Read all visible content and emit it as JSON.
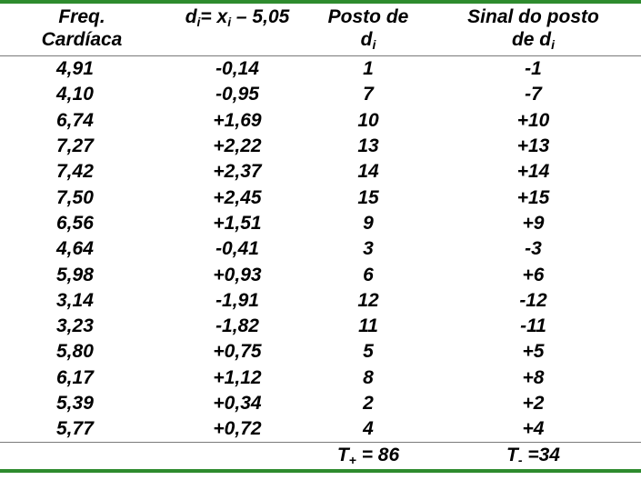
{
  "table": {
    "headers": {
      "col1_line1": "Freq.",
      "col1_line2": "Cardíaca",
      "col2_d": "d",
      "col2_i": "i",
      "col2_mid": "= x",
      "col2_i2": "i",
      "col2_tail": " – 5,05",
      "col3_line1": "Posto de",
      "col3_d": "d",
      "col3_i": "i",
      "col4_line1": "Sinal do posto",
      "col4_pre": "de d",
      "col4_i": "i"
    },
    "rows": [
      {
        "freq": "4,91",
        "di": "-0,14",
        "posto": "1",
        "sinal": "-1"
      },
      {
        "freq": "4,10",
        "di": "-0,95",
        "posto": "7",
        "sinal": "-7"
      },
      {
        "freq": "6,74",
        "di": "+1,69",
        "posto": "10",
        "sinal": "+10"
      },
      {
        "freq": "7,27",
        "di": "+2,22",
        "posto": "13",
        "sinal": "+13"
      },
      {
        "freq": "7,42",
        "di": "+2,37",
        "posto": "14",
        "sinal": "+14"
      },
      {
        "freq": "7,50",
        "di": "+2,45",
        "posto": "15",
        "sinal": "+15"
      },
      {
        "freq": "6,56",
        "di": "+1,51",
        "posto": "9",
        "sinal": "+9"
      },
      {
        "freq": "4,64",
        "di": "-0,41",
        "posto": "3",
        "sinal": "-3"
      },
      {
        "freq": "5,98",
        "di": "+0,93",
        "posto": "6",
        "sinal": "+6"
      },
      {
        "freq": "3,14",
        "di": "-1,91",
        "posto": "12",
        "sinal": "-12"
      },
      {
        "freq": "3,23",
        "di": "-1,82",
        "posto": "11",
        "sinal": "-11"
      },
      {
        "freq": "5,80",
        "di": "+0,75",
        "posto": "5",
        "sinal": "+5"
      },
      {
        "freq": "6,17",
        "di": "+1,12",
        "posto": "8",
        "sinal": "+8"
      },
      {
        "freq": "5,39",
        "di": "+0,34",
        "posto": "2",
        "sinal": "+2"
      },
      {
        "freq": "5,77",
        "di": "+0,72",
        "posto": "4",
        "sinal": "+4"
      }
    ],
    "footer": {
      "tplus_T": "T",
      "tplus_sub": "+",
      "tplus_val": " = 86",
      "tminus_T": "T",
      "tminus_sub": "-",
      "tminus_val": " =34"
    }
  },
  "colors": {
    "rule": "#2e8b2e",
    "separator": "#7a7a7a"
  }
}
